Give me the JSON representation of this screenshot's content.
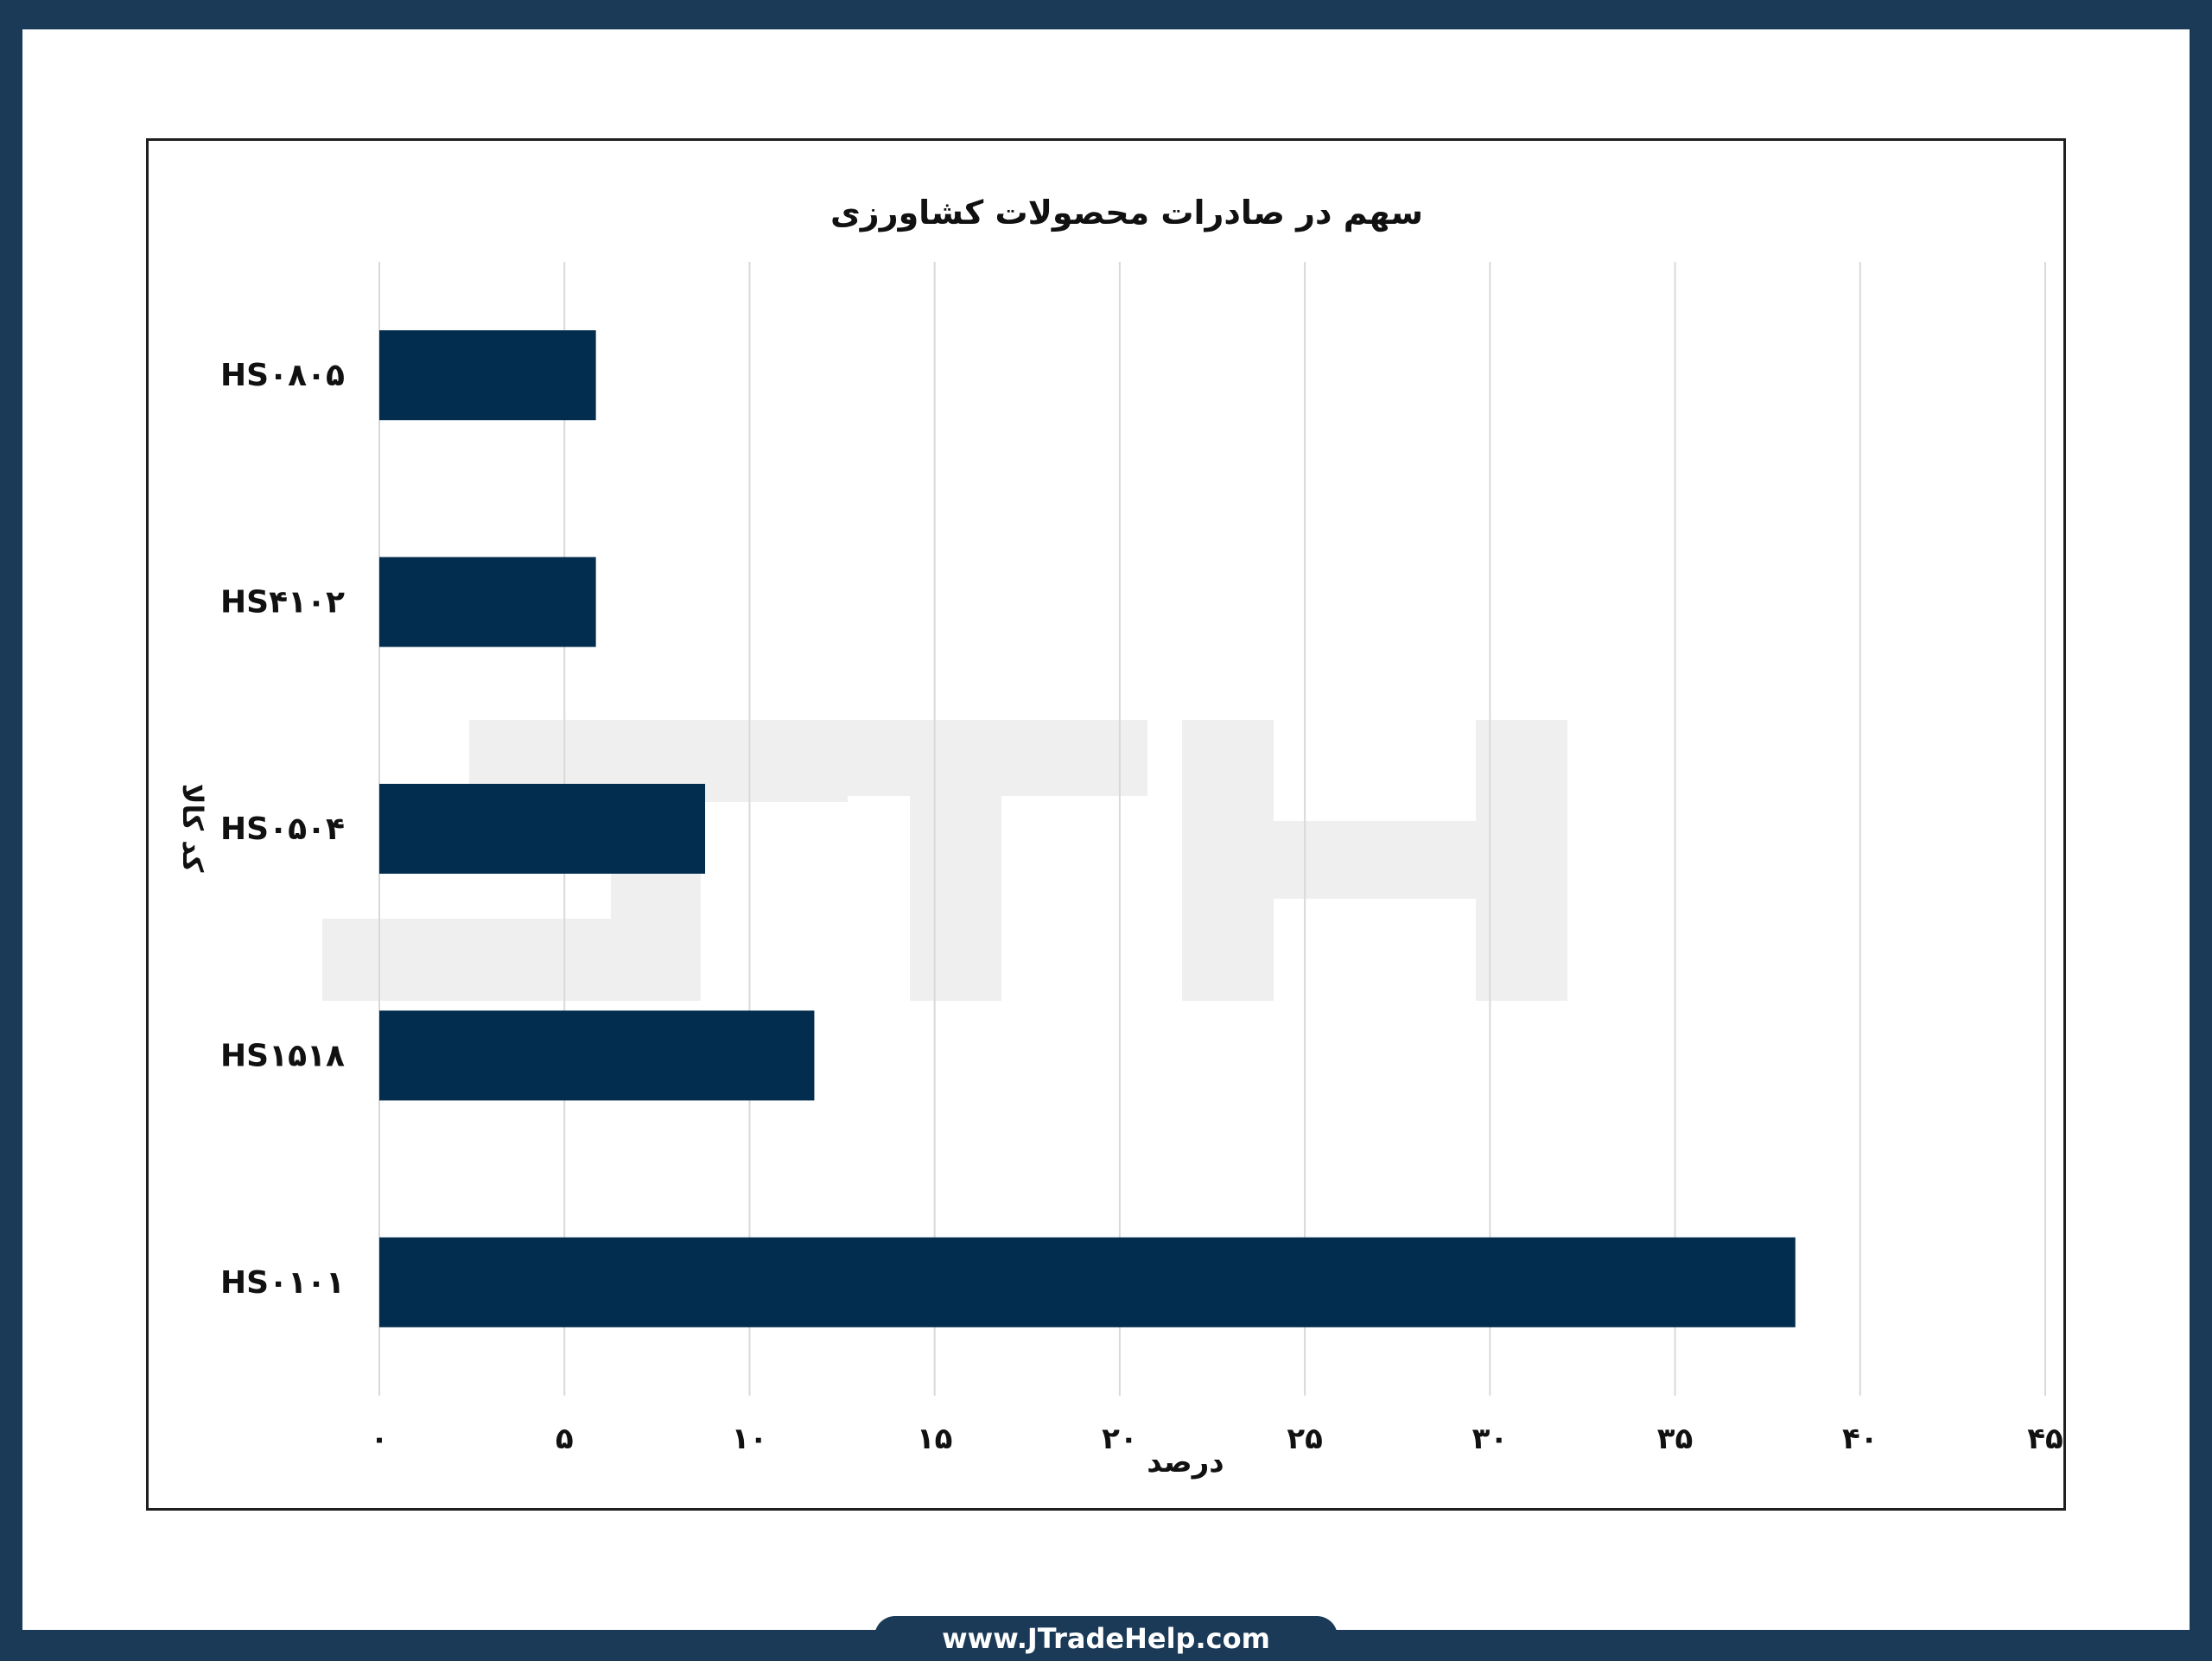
{
  "colors": {
    "frame_border": "#1b3a57",
    "bar": "#022d4e",
    "grid": "#d9d9d9",
    "watermark": "#efefef",
    "text": "#111111"
  },
  "watermark": {
    "text": "JTH"
  },
  "footer": {
    "url": "www.JTradeHelp.com"
  },
  "chart_data": {
    "type": "bar",
    "orientation": "horizontal",
    "title": "سهم در صادرات محصولات کشاورزی",
    "xlabel": "درصد",
    "ylabel": "کد کالا",
    "categories": [
      "HS۰۸۰۵",
      "HS۴۱۰۲",
      "HS۰۵۰۴",
      "HS۱۵۱۸",
      "HS۰۱۰۱"
    ],
    "values": [
      5.85,
      5.85,
      8.8,
      11.75,
      38.25
    ],
    "xlim": [
      0,
      45
    ],
    "xticks": [
      0,
      5,
      10,
      15,
      20,
      25,
      30,
      35,
      40,
      45
    ],
    "xtick_labels": [
      "۰",
      "۵",
      "۱۰",
      "۱۵",
      "۲۰",
      "۲۵",
      "۳۰",
      "۳۵",
      "۴۰",
      "۴۵"
    ],
    "grid": "vertical",
    "legend": "none"
  }
}
